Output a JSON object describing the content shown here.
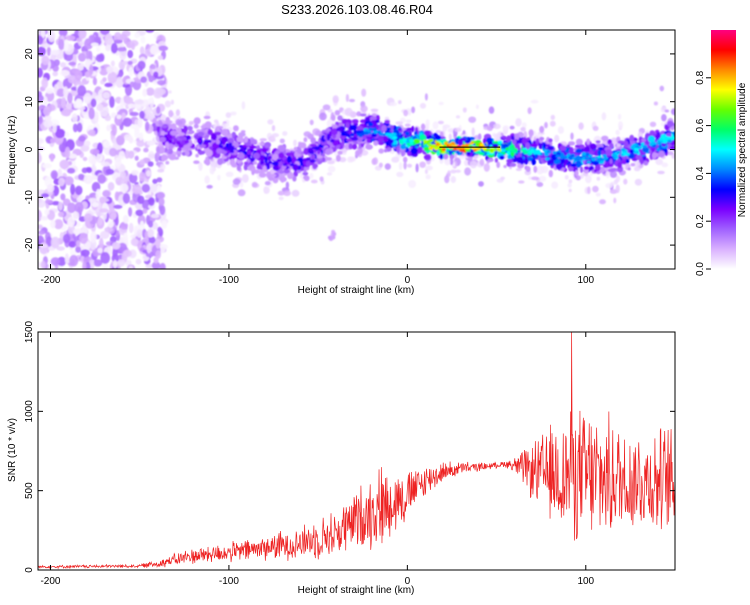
{
  "title": "S233.2026.103.08.46.R04",
  "chart_data": [
    {
      "type": "heatmap",
      "name": "spectrogram",
      "xlabel": "Height of straight line (km)",
      "ylabel": "Frequency (Hz)",
      "xlim": [
        -207,
        150
      ],
      "ylim": [
        -25,
        25
      ],
      "xticks": [
        -200,
        -100,
        0,
        100
      ],
      "yticks": [
        -20,
        -10,
        0,
        10,
        20
      ],
      "colorbar": {
        "label": "Normalized spectral amplitude",
        "range": [
          0,
          1
        ],
        "ticks": [
          0.0,
          0.2,
          0.4,
          0.6,
          0.8
        ],
        "tick_labels": [
          "0.0",
          "0.2",
          "0.4",
          "0.6",
          "0.8"
        ],
        "colors": [
          "#ffffff",
          "#d9b0ff",
          "#a060ff",
          "#7a00ff",
          "#0000ff",
          "#0088ff",
          "#00ffff",
          "#00ff66",
          "#66ff00",
          "#ffff00",
          "#ff8800",
          "#ff0000",
          "#ff0080"
        ]
      },
      "signal_trace": {
        "height_km": [
          -140,
          -120,
          -100,
          -80,
          -60,
          -40,
          -20,
          0,
          20,
          40,
          60,
          80,
          100,
          120,
          150
        ],
        "frequency_hz": [
          3,
          2,
          0.5,
          -2,
          -3,
          3,
          4,
          2,
          0.5,
          0.5,
          0,
          -1,
          -2,
          -1,
          2.5
        ],
        "peak_amplitude": [
          0.25,
          0.28,
          0.3,
          0.3,
          0.3,
          0.32,
          0.45,
          0.55,
          0.9,
          0.9,
          0.6,
          0.45,
          0.45,
          0.5,
          0.5
        ]
      },
      "noise_region_km": [
        -207,
        -140
      ],
      "low_amplitude_spot": {
        "height_km": -42,
        "frequency_hz": -18
      }
    },
    {
      "type": "line",
      "name": "snr",
      "xlabel": "Height of straight line (km)",
      "ylabel": "SNR (10 * v/v)",
      "xlim": [
        -207,
        150
      ],
      "ylim": [
        0,
        1500
      ],
      "xticks": [
        -200,
        -100,
        0,
        100
      ],
      "yticks": [
        0,
        500,
        1000,
        1500
      ],
      "color": "#ee2222",
      "envelope": {
        "height_km": [
          -207,
          -150,
          -140,
          -120,
          -100,
          -80,
          -60,
          -40,
          -25,
          -15,
          0,
          10,
          20,
          30,
          40,
          50,
          55,
          60,
          70,
          80,
          90,
          100,
          110,
          120,
          130,
          140,
          150
        ],
        "mean": [
          20,
          25,
          40,
          90,
          110,
          140,
          170,
          230,
          340,
          400,
          470,
          560,
          620,
          640,
          650,
          660,
          670,
          660,
          620,
          600,
          600,
          590,
          580,
          570,
          570,
          560,
          560
        ],
        "amplitude": [
          10,
          12,
          30,
          60,
          70,
          90,
          120,
          170,
          240,
          300,
          180,
          120,
          70,
          50,
          30,
          20,
          25,
          60,
          200,
          350,
          450,
          500,
          450,
          400,
          380,
          380,
          400
        ]
      },
      "peak": {
        "height_km": 92,
        "snr": 1520
      }
    }
  ]
}
